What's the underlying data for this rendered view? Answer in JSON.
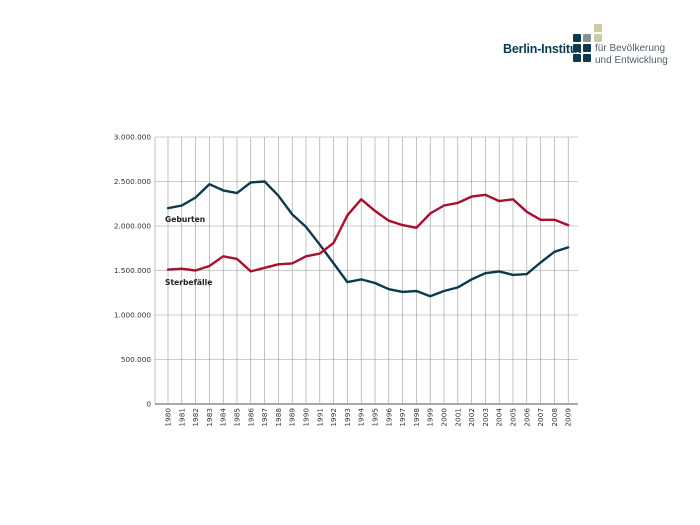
{
  "logo": {
    "name": "Berlin-Institut",
    "tagline_1": "für Bevölkerung",
    "tagline_2": "und Entwicklung",
    "colors": {
      "dark": "#0d3a4f",
      "grey": "#8a9298",
      "beige": "#cfcba0"
    }
  },
  "chart_data": {
    "type": "line",
    "title": "",
    "xlabel": "",
    "ylabel": "",
    "ylim": [
      0,
      3000000
    ],
    "yticks": [
      0,
      500000,
      1000000,
      1500000,
      2000000,
      2500000,
      3000000
    ],
    "ytick_labels": [
      "0",
      "500.000",
      "1.000.000",
      "1.500.000",
      "2.000.000",
      "2.500.000",
      "3.000.000"
    ],
    "grid": true,
    "x": [
      1980,
      1981,
      1982,
      1983,
      1984,
      1985,
      1986,
      1987,
      1988,
      1989,
      1990,
      1991,
      1992,
      1993,
      1994,
      1995,
      1996,
      1997,
      1998,
      1999,
      2000,
      2001,
      2002,
      2003,
      2004,
      2005,
      2006,
      2007,
      2008,
      2009
    ],
    "series": [
      {
        "name": "Geburten",
        "color": "#0d3a4f",
        "values": [
          2200000,
          2230000,
          2320000,
          2470000,
          2400000,
          2370000,
          2490000,
          2500000,
          2340000,
          2130000,
          1990000,
          1790000,
          1580000,
          1370000,
          1400000,
          1360000,
          1290000,
          1260000,
          1270000,
          1210000,
          1270000,
          1310000,
          1400000,
          1470000,
          1490000,
          1450000,
          1460000,
          1590000,
          1710000,
          1760000
        ]
      },
      {
        "name": "Sterbefälle",
        "color": "#a8102e",
        "values": [
          1510000,
          1520000,
          1500000,
          1550000,
          1660000,
          1630000,
          1490000,
          1530000,
          1570000,
          1580000,
          1660000,
          1690000,
          1810000,
          2120000,
          2300000,
          2170000,
          2060000,
          2010000,
          1980000,
          2140000,
          2230000,
          2260000,
          2330000,
          2350000,
          2280000,
          2300000,
          2160000,
          2070000,
          2070000,
          2010000
        ]
      }
    ]
  }
}
